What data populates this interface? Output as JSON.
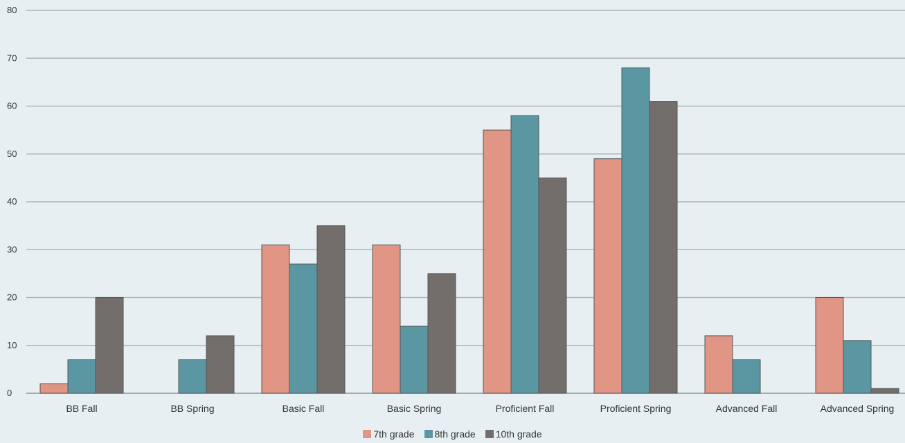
{
  "chart_data": {
    "type": "bar",
    "title": "",
    "xlabel": "",
    "ylabel": "",
    "ylim": [
      0,
      80
    ],
    "yticks": [
      0,
      10,
      20,
      30,
      40,
      50,
      60,
      70,
      80
    ],
    "grid": true,
    "legend_position": "bottom",
    "categories": [
      "BB Fall",
      "BB Spring",
      "Basic Fall",
      "Basic Spring",
      "Proficient Fall",
      "Proficient Spring",
      "Advanced Fall",
      "Advanced Spring"
    ],
    "series": [
      {
        "name": "7th grade",
        "color": "#e09585",
        "values": [
          2,
          0,
          31,
          31,
          55,
          49,
          12,
          20
        ]
      },
      {
        "name": "8th grade",
        "color": "#5b97a3",
        "values": [
          7,
          7,
          27,
          14,
          58,
          68,
          7,
          11
        ]
      },
      {
        "name": "10th grade",
        "color": "#736e6c",
        "values": [
          20,
          12,
          35,
          25,
          45,
          61,
          0,
          1
        ]
      }
    ]
  }
}
